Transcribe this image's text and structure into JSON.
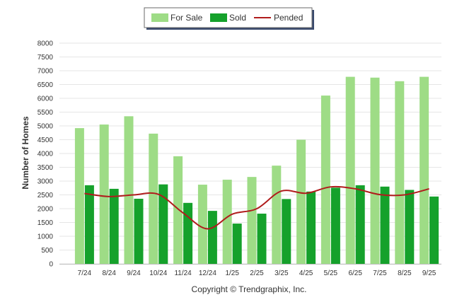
{
  "chart_data": {
    "type": "bar",
    "title": "",
    "xlabel": "",
    "ylabel": "Number of Homes",
    "ylim": [
      0,
      8000
    ],
    "ytick_step": 500,
    "grid": true,
    "legend_position": "top-center",
    "categories": [
      "7/24",
      "8/24",
      "9/24",
      "10/24",
      "11/24",
      "12/24",
      "1/25",
      "2/25",
      "3/25",
      "4/25",
      "5/25",
      "6/25",
      "7/25",
      "8/25",
      "9/25"
    ],
    "series": [
      {
        "name": "For Sale",
        "kind": "bar",
        "color": "#9edc86",
        "values": [
          4920,
          5050,
          5350,
          4720,
          3900,
          2870,
          3050,
          3150,
          3560,
          4500,
          6100,
          6780,
          6750,
          6620,
          6780
        ]
      },
      {
        "name": "Sold",
        "kind": "bar",
        "color": "#15a12b",
        "values": [
          2850,
          2720,
          2360,
          2880,
          2210,
          1920,
          1460,
          1820,
          2350,
          2620,
          2760,
          2850,
          2800,
          2680,
          2440
        ]
      },
      {
        "name": "Pended",
        "kind": "line",
        "color": "#b01c1c",
        "values": [
          2550,
          2440,
          2500,
          2520,
          1850,
          1270,
          1800,
          2000,
          2640,
          2560,
          2790,
          2720,
          2510,
          2500,
          2720
        ]
      }
    ]
  },
  "footer": {
    "copyright": "Copyright © Trendgraphix, Inc."
  }
}
